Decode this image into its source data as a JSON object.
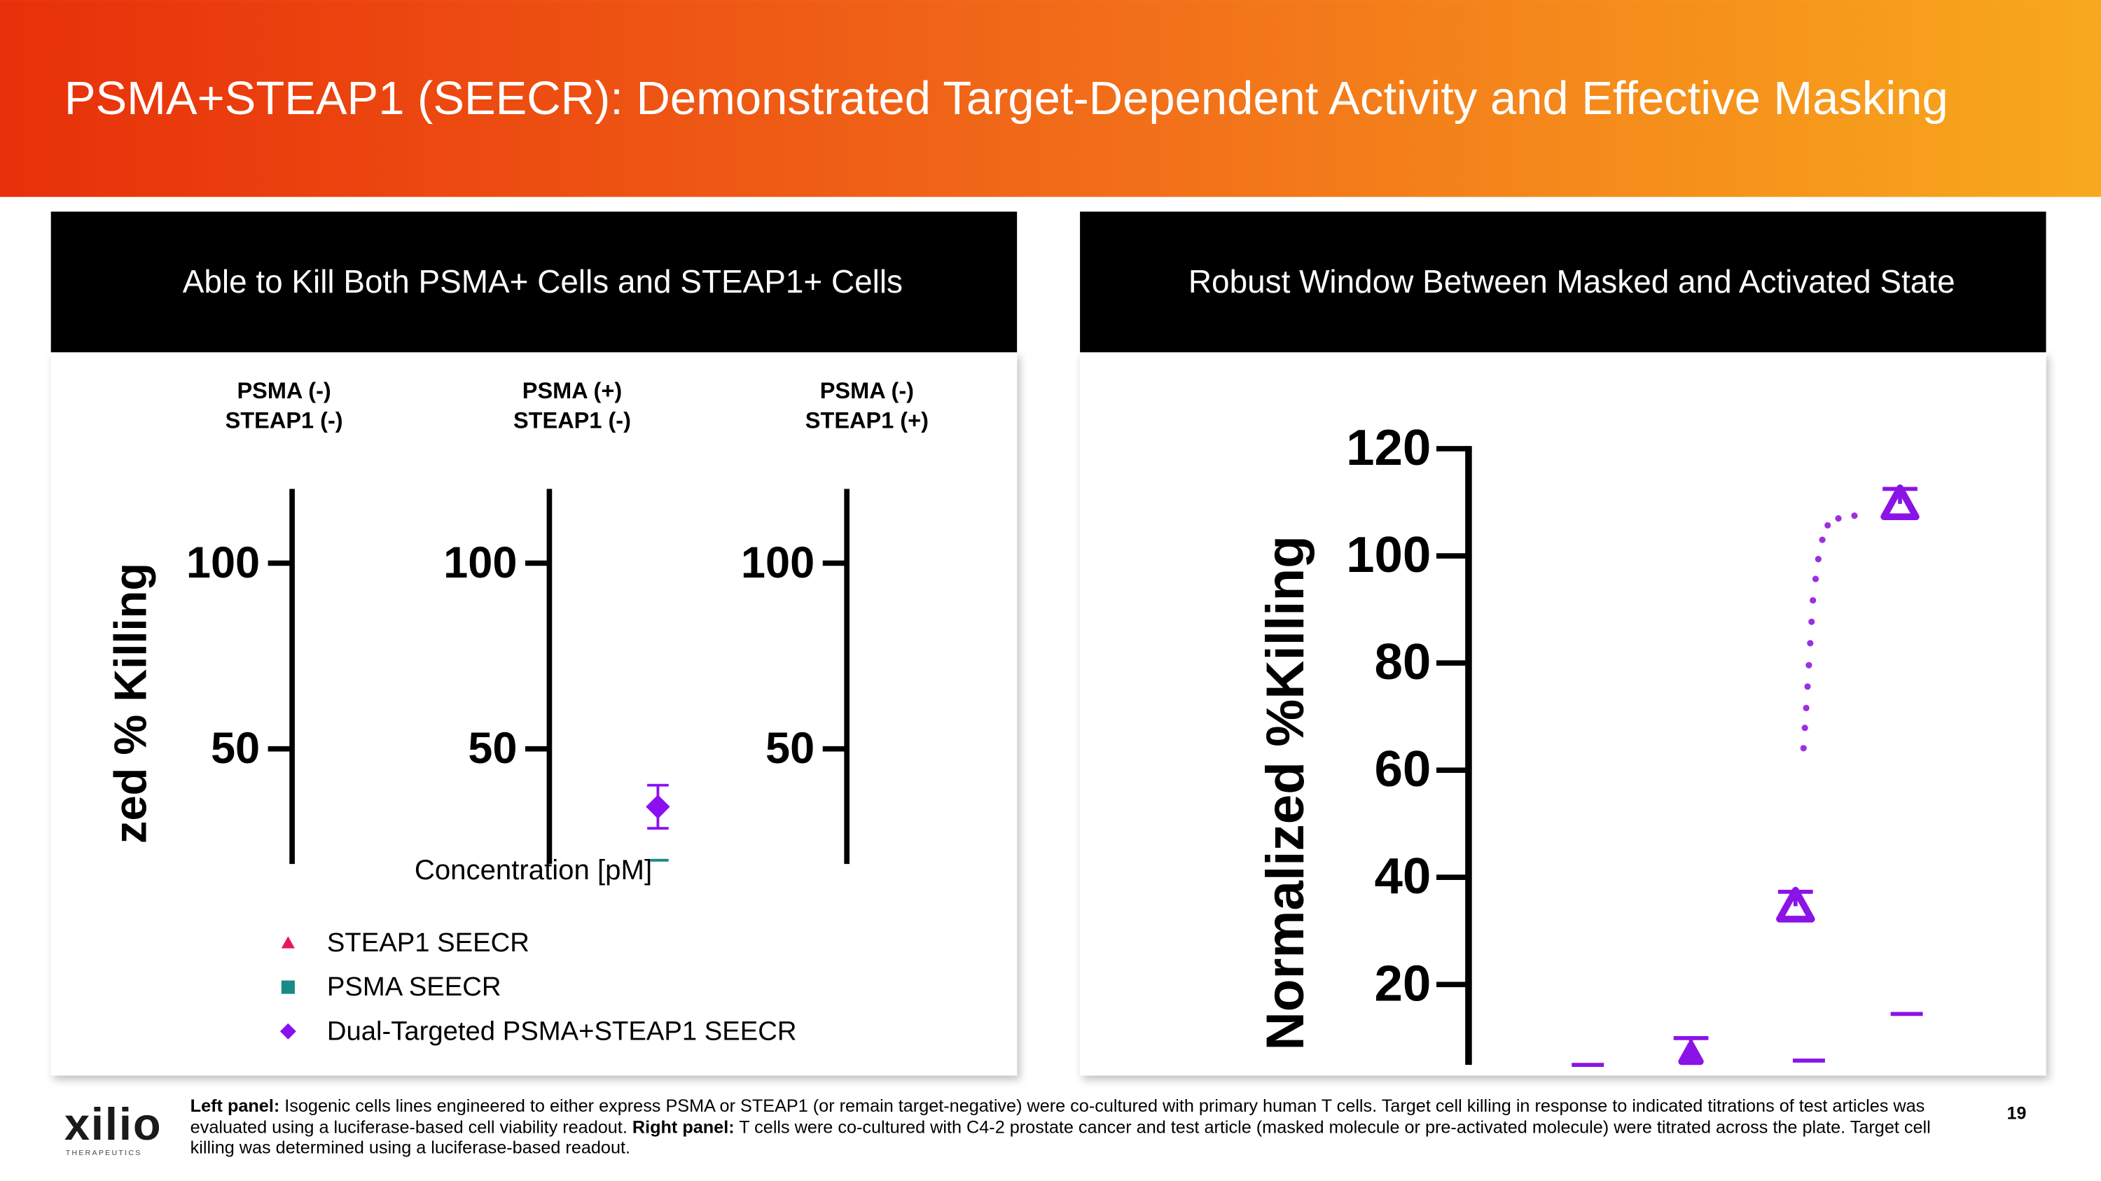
{
  "header": {
    "title": "PSMA+STEAP1 (SEECR): Demonstrated Target-Dependent Activity and Effective Masking"
  },
  "left_panel": {
    "heading": "Able to Kill Both PSMA+ Cells and STEAP1+ Cells",
    "y_axis_label": "zed % Killing",
    "x_axis_label": "Concentration [pM]",
    "ylim": [
      19,
      120
    ],
    "yticks": [
      50,
      100
    ],
    "subplots": [
      {
        "title": [
          "PSMA (-)",
          "STEAP1 (-)"
        ]
      },
      {
        "title": [
          "PSMA (+)",
          "STEAP1 (-)"
        ]
      },
      {
        "title": [
          "PSMA (-)",
          "STEAP1 (+)"
        ]
      }
    ],
    "series": [
      {
        "name": "STEAP1 SEECR",
        "color": "#e8175d",
        "marker": "triangle",
        "values": [
          null,
          null,
          null
        ]
      },
      {
        "name": "PSMA SEECR",
        "color": "#1a8a86",
        "marker": "square",
        "values": [
          null,
          20,
          null
        ]
      },
      {
        "name": "Dual-Targeted PSMA+STEAP1 SEECR",
        "color": "#8b10f0",
        "marker": "diamond",
        "values": [
          null,
          34.4,
          null
        ],
        "errors": [
          null,
          5.8,
          null
        ]
      }
    ]
  },
  "right_panel": {
    "heading": "Robust Window Between Masked and Activated State",
    "y_axis_label": "Normalized %Killing",
    "ylim": [
      5,
      120
    ],
    "yticks": [
      20,
      40,
      60,
      80,
      100,
      120
    ],
    "activated": {
      "color": "#8a14e6",
      "values": [
        7,
        34.6,
        109.7
      ],
      "errors": [
        3,
        2.7,
        2.8
      ]
    },
    "masked": {
      "color": "#8a14e6",
      "values": [
        5,
        5.8,
        14.5
      ]
    },
    "fit_curve": {
      "color": "#9b30e0",
      "values": [
        64.1,
        67.9,
        71.6,
        75.6,
        79.6,
        83.7,
        87.7,
        91.7,
        95.7,
        99.4,
        103.0,
        105.7,
        107.0,
        107.5
      ]
    }
  },
  "footer": {
    "logo": "xilio",
    "logo_sub": "THERAPEUTICS",
    "page_number": "19",
    "caption": {
      "left_label": "Left panel:",
      "left_text": " Isogenic cells lines engineered to either express PSMA or STEAP1 (or remain target-negative) were co-cultured with primary human T cells. Target cell killing in response to indicated titrations of test articles was evaluated using a luciferase-based cell viability readout. ",
      "right_label": "Right panel:",
      "right_text": " T cells were co-cultured with C4-2 prostate cancer and test article (masked molecule or pre-activated molecule) were titrated across the plate. Target cell killing was determined using a luciferase-based readout."
    }
  }
}
